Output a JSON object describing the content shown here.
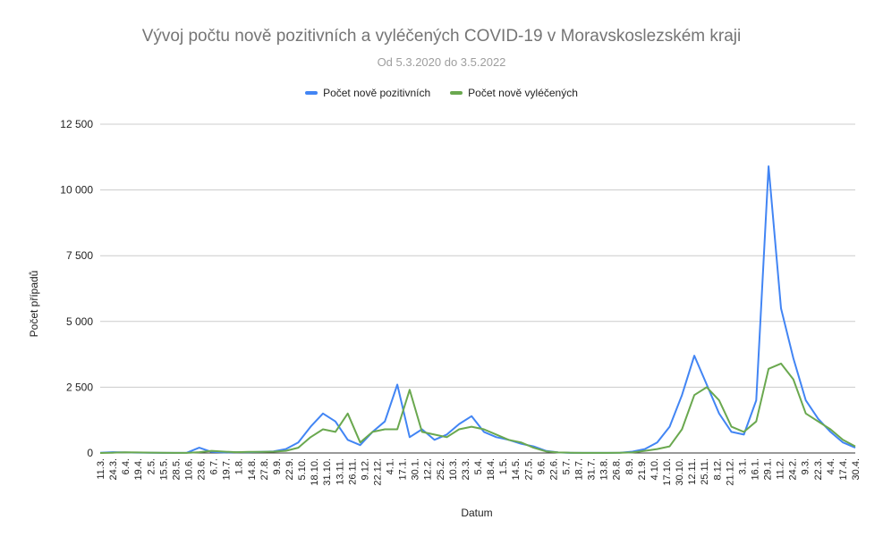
{
  "chart_data": {
    "type": "line",
    "title": "Vývoj počtu nově pozitivních a vyléčených COVID-19 v Moravskoslezském kraji",
    "subtitle": "Od 5.3.2020 do 3.5.2022",
    "xlabel": "Datum",
    "ylabel": "Počet případů",
    "ylim": [
      0,
      12500
    ],
    "yticks": [
      0,
      2500,
      5000,
      7500,
      10000,
      12500
    ],
    "ytick_labels": [
      "0",
      "2 500",
      "5 000",
      "7 500",
      "10 000",
      "12 500"
    ],
    "grid": true,
    "legend_position": "top",
    "xtick_labels": [
      "11.3.",
      "24.3.",
      "6.4.",
      "19.4.",
      "2.5.",
      "15.5.",
      "28.5.",
      "10.6.",
      "23.6.",
      "6.7.",
      "19.7.",
      "1.8.",
      "14.8.",
      "27.8.",
      "9.9.",
      "22.9.",
      "5.10.",
      "18.10.",
      "31.10.",
      "13.11.",
      "26.11.",
      "9.12.",
      "22.12.",
      "4.1.",
      "17.1.",
      "30.1.",
      "12.2.",
      "25.2.",
      "10.3.",
      "23.3.",
      "5.4.",
      "18.4.",
      "1.5.",
      "14.5.",
      "27.5.",
      "9.6.",
      "22.6.",
      "5.7.",
      "18.7.",
      "31.7.",
      "13.8.",
      "26.8.",
      "8.9.",
      "21.9.",
      "4.10.",
      "17.10.",
      "30.10.",
      "12.11.",
      "25.11.",
      "8.12.",
      "21.12.",
      "3.1.",
      "16.1.",
      "29.1.",
      "11.2.",
      "24.2.",
      "9.3.",
      "22.3.",
      "4.4.",
      "17.4.",
      "30.4."
    ],
    "series": [
      {
        "name": "Počet nově pozitivních",
        "color": "#4285f4",
        "values": [
          10,
          30,
          20,
          15,
          10,
          5,
          5,
          10,
          200,
          40,
          20,
          30,
          30,
          40,
          60,
          150,
          400,
          1000,
          1500,
          1200,
          500,
          300,
          800,
          1200,
          2600,
          600,
          900,
          500,
          700,
          1100,
          1400,
          800,
          600,
          500,
          350,
          250,
          80,
          20,
          5,
          5,
          5,
          5,
          10,
          50,
          150,
          400,
          1000,
          2200,
          3700,
          2600,
          1500,
          800,
          700,
          2000,
          10900,
          5500,
          3600,
          2000,
          1300,
          800,
          400,
          200
        ]
      },
      {
        "name": "Počet nově vyléčených",
        "color": "#6aa84f",
        "values": [
          0,
          10,
          25,
          20,
          15,
          10,
          5,
          5,
          30,
          80,
          50,
          30,
          40,
          40,
          50,
          80,
          200,
          600,
          900,
          800,
          1500,
          400,
          800,
          900,
          900,
          2400,
          800,
          700,
          600,
          900,
          1000,
          900,
          700,
          500,
          400,
          200,
          60,
          20,
          10,
          5,
          5,
          5,
          10,
          20,
          80,
          150,
          250,
          900,
          2200,
          2500,
          2000,
          1000,
          800,
          1200,
          3200,
          3400,
          2800,
          1500,
          1200,
          900,
          500,
          250
        ]
      }
    ]
  }
}
